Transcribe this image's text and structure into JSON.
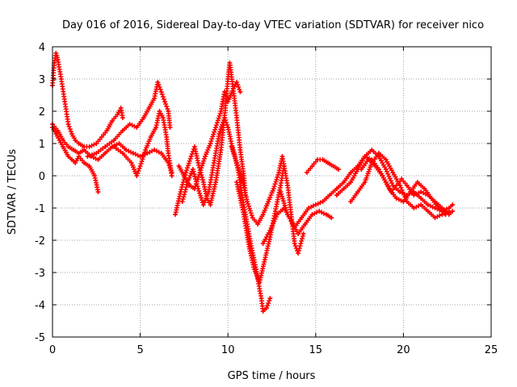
{
  "chart_data": {
    "type": "scatter",
    "title": "Day 016 of 2016, Sidereal Day-to-day VTEC variation (SDTVAR) for receiver nico",
    "xlabel": "GPS time / hours",
    "ylabel": "SDTVAR / TECUs",
    "xlim": [
      0,
      25
    ],
    "ylim": [
      -5,
      4
    ],
    "xticks": [
      0,
      5,
      10,
      15,
      20,
      25
    ],
    "yticks": [
      -5,
      -4,
      -3,
      -2,
      -1,
      0,
      1,
      2,
      3,
      4
    ],
    "grid": true,
    "marker": "plus",
    "color": "#ff0000",
    "series": [
      {
        "name": "s1",
        "points": [
          [
            0.0,
            2.8
          ],
          [
            0.1,
            3.5
          ],
          [
            0.2,
            3.8
          ],
          [
            0.3,
            3.6
          ],
          [
            0.5,
            3.0
          ],
          [
            0.7,
            2.3
          ],
          [
            0.9,
            1.6
          ],
          [
            1.1,
            1.3
          ],
          [
            1.3,
            1.1
          ],
          [
            1.5,
            1.0
          ],
          [
            1.8,
            0.9
          ],
          [
            2.1,
            0.9
          ],
          [
            2.5,
            1.0
          ],
          [
            2.8,
            1.2
          ],
          [
            3.1,
            1.4
          ],
          [
            3.4,
            1.7
          ],
          [
            3.7,
            1.9
          ],
          [
            3.9,
            2.1
          ],
          [
            4.0,
            1.8
          ]
        ]
      },
      {
        "name": "s2",
        "points": [
          [
            0.0,
            1.5
          ],
          [
            0.2,
            1.3
          ],
          [
            0.4,
            1.1
          ],
          [
            0.6,
            0.9
          ],
          [
            0.9,
            0.6
          ],
          [
            1.1,
            0.5
          ],
          [
            1.3,
            0.4
          ],
          [
            1.5,
            0.6
          ],
          [
            1.8,
            0.4
          ],
          [
            2.1,
            0.3
          ],
          [
            2.4,
            0.0
          ],
          [
            2.6,
            -0.5
          ]
        ]
      },
      {
        "name": "s3",
        "points": [
          [
            0.0,
            1.6
          ],
          [
            0.3,
            1.4
          ],
          [
            0.6,
            1.1
          ],
          [
            0.9,
            0.9
          ],
          [
            1.2,
            0.8
          ],
          [
            1.5,
            0.7
          ],
          [
            1.8,
            0.8
          ],
          [
            2.2,
            0.6
          ],
          [
            2.6,
            0.5
          ],
          [
            3.0,
            0.7
          ],
          [
            3.4,
            0.9
          ],
          [
            3.8,
            1.0
          ],
          [
            4.2,
            0.8
          ],
          [
            4.6,
            0.7
          ],
          [
            5.0,
            0.6
          ],
          [
            5.4,
            0.7
          ],
          [
            5.8,
            0.8
          ],
          [
            6.2,
            0.7
          ],
          [
            6.6,
            0.4
          ],
          [
            6.8,
            0.1
          ]
        ]
      },
      {
        "name": "s4",
        "points": [
          [
            2.0,
            0.6
          ],
          [
            2.5,
            0.7
          ],
          [
            3.0,
            0.9
          ],
          [
            3.5,
            1.1
          ],
          [
            4.0,
            1.4
          ],
          [
            4.4,
            1.6
          ],
          [
            4.8,
            1.5
          ],
          [
            5.2,
            1.8
          ],
          [
            5.5,
            2.1
          ],
          [
            5.8,
            2.4
          ],
          [
            6.0,
            2.9
          ],
          [
            6.2,
            2.6
          ],
          [
            6.4,
            2.3
          ],
          [
            6.6,
            2.0
          ],
          [
            6.7,
            1.5
          ]
        ]
      },
      {
        "name": "s5",
        "points": [
          [
            3.5,
            0.9
          ],
          [
            4.0,
            0.7
          ],
          [
            4.5,
            0.4
          ],
          [
            4.8,
            0.0
          ],
          [
            5.0,
            0.3
          ],
          [
            5.3,
            0.8
          ],
          [
            5.6,
            1.2
          ],
          [
            5.9,
            1.5
          ],
          [
            6.1,
            2.0
          ],
          [
            6.3,
            1.8
          ],
          [
            6.5,
            1.2
          ],
          [
            6.6,
            0.7
          ],
          [
            6.8,
            0.0
          ]
        ]
      },
      {
        "name": "s6",
        "points": [
          [
            7.0,
            -1.2
          ],
          [
            7.3,
            -0.5
          ],
          [
            7.6,
            0.1
          ],
          [
            7.9,
            0.6
          ],
          [
            8.1,
            0.9
          ],
          [
            8.3,
            0.4
          ],
          [
            8.6,
            -0.2
          ],
          [
            8.8,
            -0.7
          ],
          [
            9.0,
            -0.9
          ],
          [
            9.3,
            -0.2
          ],
          [
            9.6,
            0.8
          ],
          [
            9.8,
            1.8
          ],
          [
            10.0,
            3.0
          ],
          [
            10.1,
            3.5
          ],
          [
            10.3,
            2.7
          ],
          [
            10.5,
            1.8
          ],
          [
            10.7,
            0.8
          ],
          [
            10.9,
            0.0
          ],
          [
            11.0,
            -0.6
          ]
        ]
      },
      {
        "name": "s7",
        "points": [
          [
            7.2,
            0.3
          ],
          [
            7.5,
            0.0
          ],
          [
            7.8,
            -0.3
          ],
          [
            8.1,
            -0.4
          ],
          [
            8.4,
            0.1
          ],
          [
            8.7,
            0.6
          ],
          [
            9.0,
            1.0
          ],
          [
            9.3,
            1.5
          ],
          [
            9.6,
            2.0
          ],
          [
            9.8,
            2.6
          ],
          [
            10.0,
            2.3
          ],
          [
            10.3,
            2.7
          ],
          [
            10.5,
            2.9
          ],
          [
            10.7,
            2.6
          ]
        ]
      },
      {
        "name": "s8",
        "points": [
          [
            7.4,
            -0.8
          ],
          [
            7.7,
            -0.2
          ],
          [
            8.0,
            0.2
          ],
          [
            8.3,
            -0.4
          ],
          [
            8.6,
            -0.9
          ],
          [
            8.9,
            -0.5
          ],
          [
            9.2,
            0.4
          ],
          [
            9.5,
            1.3
          ],
          [
            9.8,
            1.8
          ],
          [
            10.0,
            1.5
          ],
          [
            10.2,
            1.0
          ],
          [
            10.4,
            0.6
          ],
          [
            10.6,
            0.1
          ],
          [
            10.8,
            -0.6
          ],
          [
            11.0,
            -1.2
          ],
          [
            11.3,
            -2.1
          ],
          [
            11.6,
            -2.9
          ],
          [
            11.9,
            -3.8
          ],
          [
            12.0,
            -4.2
          ],
          [
            12.2,
            -4.1
          ],
          [
            12.4,
            -3.8
          ]
        ]
      },
      {
        "name": "s9",
        "points": [
          [
            10.2,
            0.9
          ],
          [
            10.5,
            0.4
          ],
          [
            10.8,
            -0.1
          ],
          [
            11.1,
            -0.8
          ],
          [
            11.4,
            -1.3
          ],
          [
            11.7,
            -1.5
          ],
          [
            12.0,
            -1.2
          ],
          [
            12.3,
            -0.8
          ],
          [
            12.6,
            -0.4
          ],
          [
            12.9,
            0.1
          ],
          [
            13.1,
            0.6
          ],
          [
            13.2,
            0.3
          ]
        ]
      },
      {
        "name": "s10",
        "points": [
          [
            10.5,
            -0.2
          ],
          [
            10.9,
            -1.2
          ],
          [
            11.2,
            -2.2
          ],
          [
            11.5,
            -2.9
          ],
          [
            11.8,
            -3.3
          ],
          [
            12.1,
            -2.6
          ],
          [
            12.4,
            -1.9
          ],
          [
            12.7,
            -1.1
          ],
          [
            13.0,
            -0.3
          ],
          [
            13.2,
            0.3
          ],
          [
            13.4,
            -0.3
          ],
          [
            13.6,
            -1.2
          ],
          [
            13.8,
            -2.1
          ],
          [
            14.0,
            -2.4
          ],
          [
            14.3,
            -1.8
          ]
        ]
      },
      {
        "name": "s11",
        "points": [
          [
            12.0,
            -2.1
          ],
          [
            12.4,
            -1.7
          ],
          [
            12.8,
            -1.2
          ],
          [
            13.2,
            -1.0
          ],
          [
            13.6,
            -1.4
          ],
          [
            14.0,
            -1.8
          ],
          [
            14.4,
            -1.5
          ],
          [
            14.8,
            -1.2
          ],
          [
            15.2,
            -1.1
          ],
          [
            15.6,
            -1.2
          ],
          [
            15.9,
            -1.3
          ]
        ]
      },
      {
        "name": "s12",
        "points": [
          [
            13.0,
            -0.5
          ],
          [
            13.4,
            -1.2
          ],
          [
            13.8,
            -1.6
          ],
          [
            14.2,
            -1.3
          ],
          [
            14.6,
            -1.0
          ],
          [
            15.0,
            -0.9
          ],
          [
            15.4,
            -0.8
          ],
          [
            15.8,
            -0.6
          ],
          [
            16.2,
            -0.4
          ],
          [
            16.6,
            -0.2
          ],
          [
            17.0,
            0.1
          ],
          [
            17.4,
            0.3
          ],
          [
            17.8,
            0.6
          ],
          [
            18.2,
            0.8
          ],
          [
            18.6,
            0.6
          ],
          [
            19.0,
            0.2
          ],
          [
            19.4,
            -0.3
          ],
          [
            19.8,
            -0.5
          ],
          [
            20.2,
            -0.6
          ],
          [
            20.6,
            -0.5
          ],
          [
            21.0,
            -0.7
          ],
          [
            21.4,
            -0.9
          ],
          [
            21.8,
            -1.0
          ],
          [
            22.2,
            -1.1
          ],
          [
            22.6,
            -1.0
          ],
          [
            22.8,
            -0.9
          ]
        ]
      },
      {
        "name": "s13",
        "points": [
          [
            14.5,
            0.1
          ],
          [
            14.8,
            0.3
          ],
          [
            15.1,
            0.5
          ],
          [
            15.4,
            0.5
          ],
          [
            15.7,
            0.4
          ],
          [
            16.0,
            0.3
          ],
          [
            16.3,
            0.2
          ]
        ]
      },
      {
        "name": "s14",
        "points": [
          [
            16.2,
            -0.6
          ],
          [
            16.6,
            -0.4
          ],
          [
            17.0,
            -0.2
          ],
          [
            17.4,
            0.2
          ],
          [
            17.8,
            0.6
          ],
          [
            18.2,
            0.5
          ],
          [
            18.6,
            0.2
          ],
          [
            19.0,
            -0.2
          ],
          [
            19.3,
            -0.5
          ],
          [
            19.6,
            -0.3
          ],
          [
            19.9,
            -0.1
          ],
          [
            20.2,
            -0.3
          ],
          [
            20.6,
            -0.6
          ],
          [
            21.0,
            -0.5
          ],
          [
            21.4,
            -0.6
          ],
          [
            21.8,
            -0.8
          ],
          [
            22.2,
            -1.0
          ],
          [
            22.6,
            -1.2
          ],
          [
            22.8,
            -1.1
          ]
        ]
      },
      {
        "name": "s15",
        "points": [
          [
            17.0,
            -0.8
          ],
          [
            17.4,
            -0.5
          ],
          [
            17.8,
            -0.2
          ],
          [
            18.2,
            0.4
          ],
          [
            18.6,
            0.7
          ],
          [
            19.0,
            0.5
          ],
          [
            19.4,
            0.1
          ],
          [
            19.8,
            -0.3
          ],
          [
            20.2,
            -0.8
          ],
          [
            20.6,
            -1.0
          ],
          [
            21.0,
            -0.9
          ],
          [
            21.4,
            -1.1
          ],
          [
            21.8,
            -1.3
          ],
          [
            22.2,
            -1.2
          ],
          [
            22.6,
            -1.1
          ]
        ]
      },
      {
        "name": "s16",
        "points": [
          [
            17.6,
            0.2
          ],
          [
            18.0,
            0.5
          ],
          [
            18.4,
            0.3
          ],
          [
            18.8,
            0.0
          ],
          [
            19.2,
            -0.4
          ],
          [
            19.6,
            -0.7
          ],
          [
            20.0,
            -0.8
          ],
          [
            20.4,
            -0.5
          ],
          [
            20.8,
            -0.2
          ],
          [
            21.2,
            -0.4
          ],
          [
            21.6,
            -0.7
          ],
          [
            22.0,
            -1.0
          ],
          [
            22.4,
            -1.2
          ]
        ]
      }
    ]
  }
}
